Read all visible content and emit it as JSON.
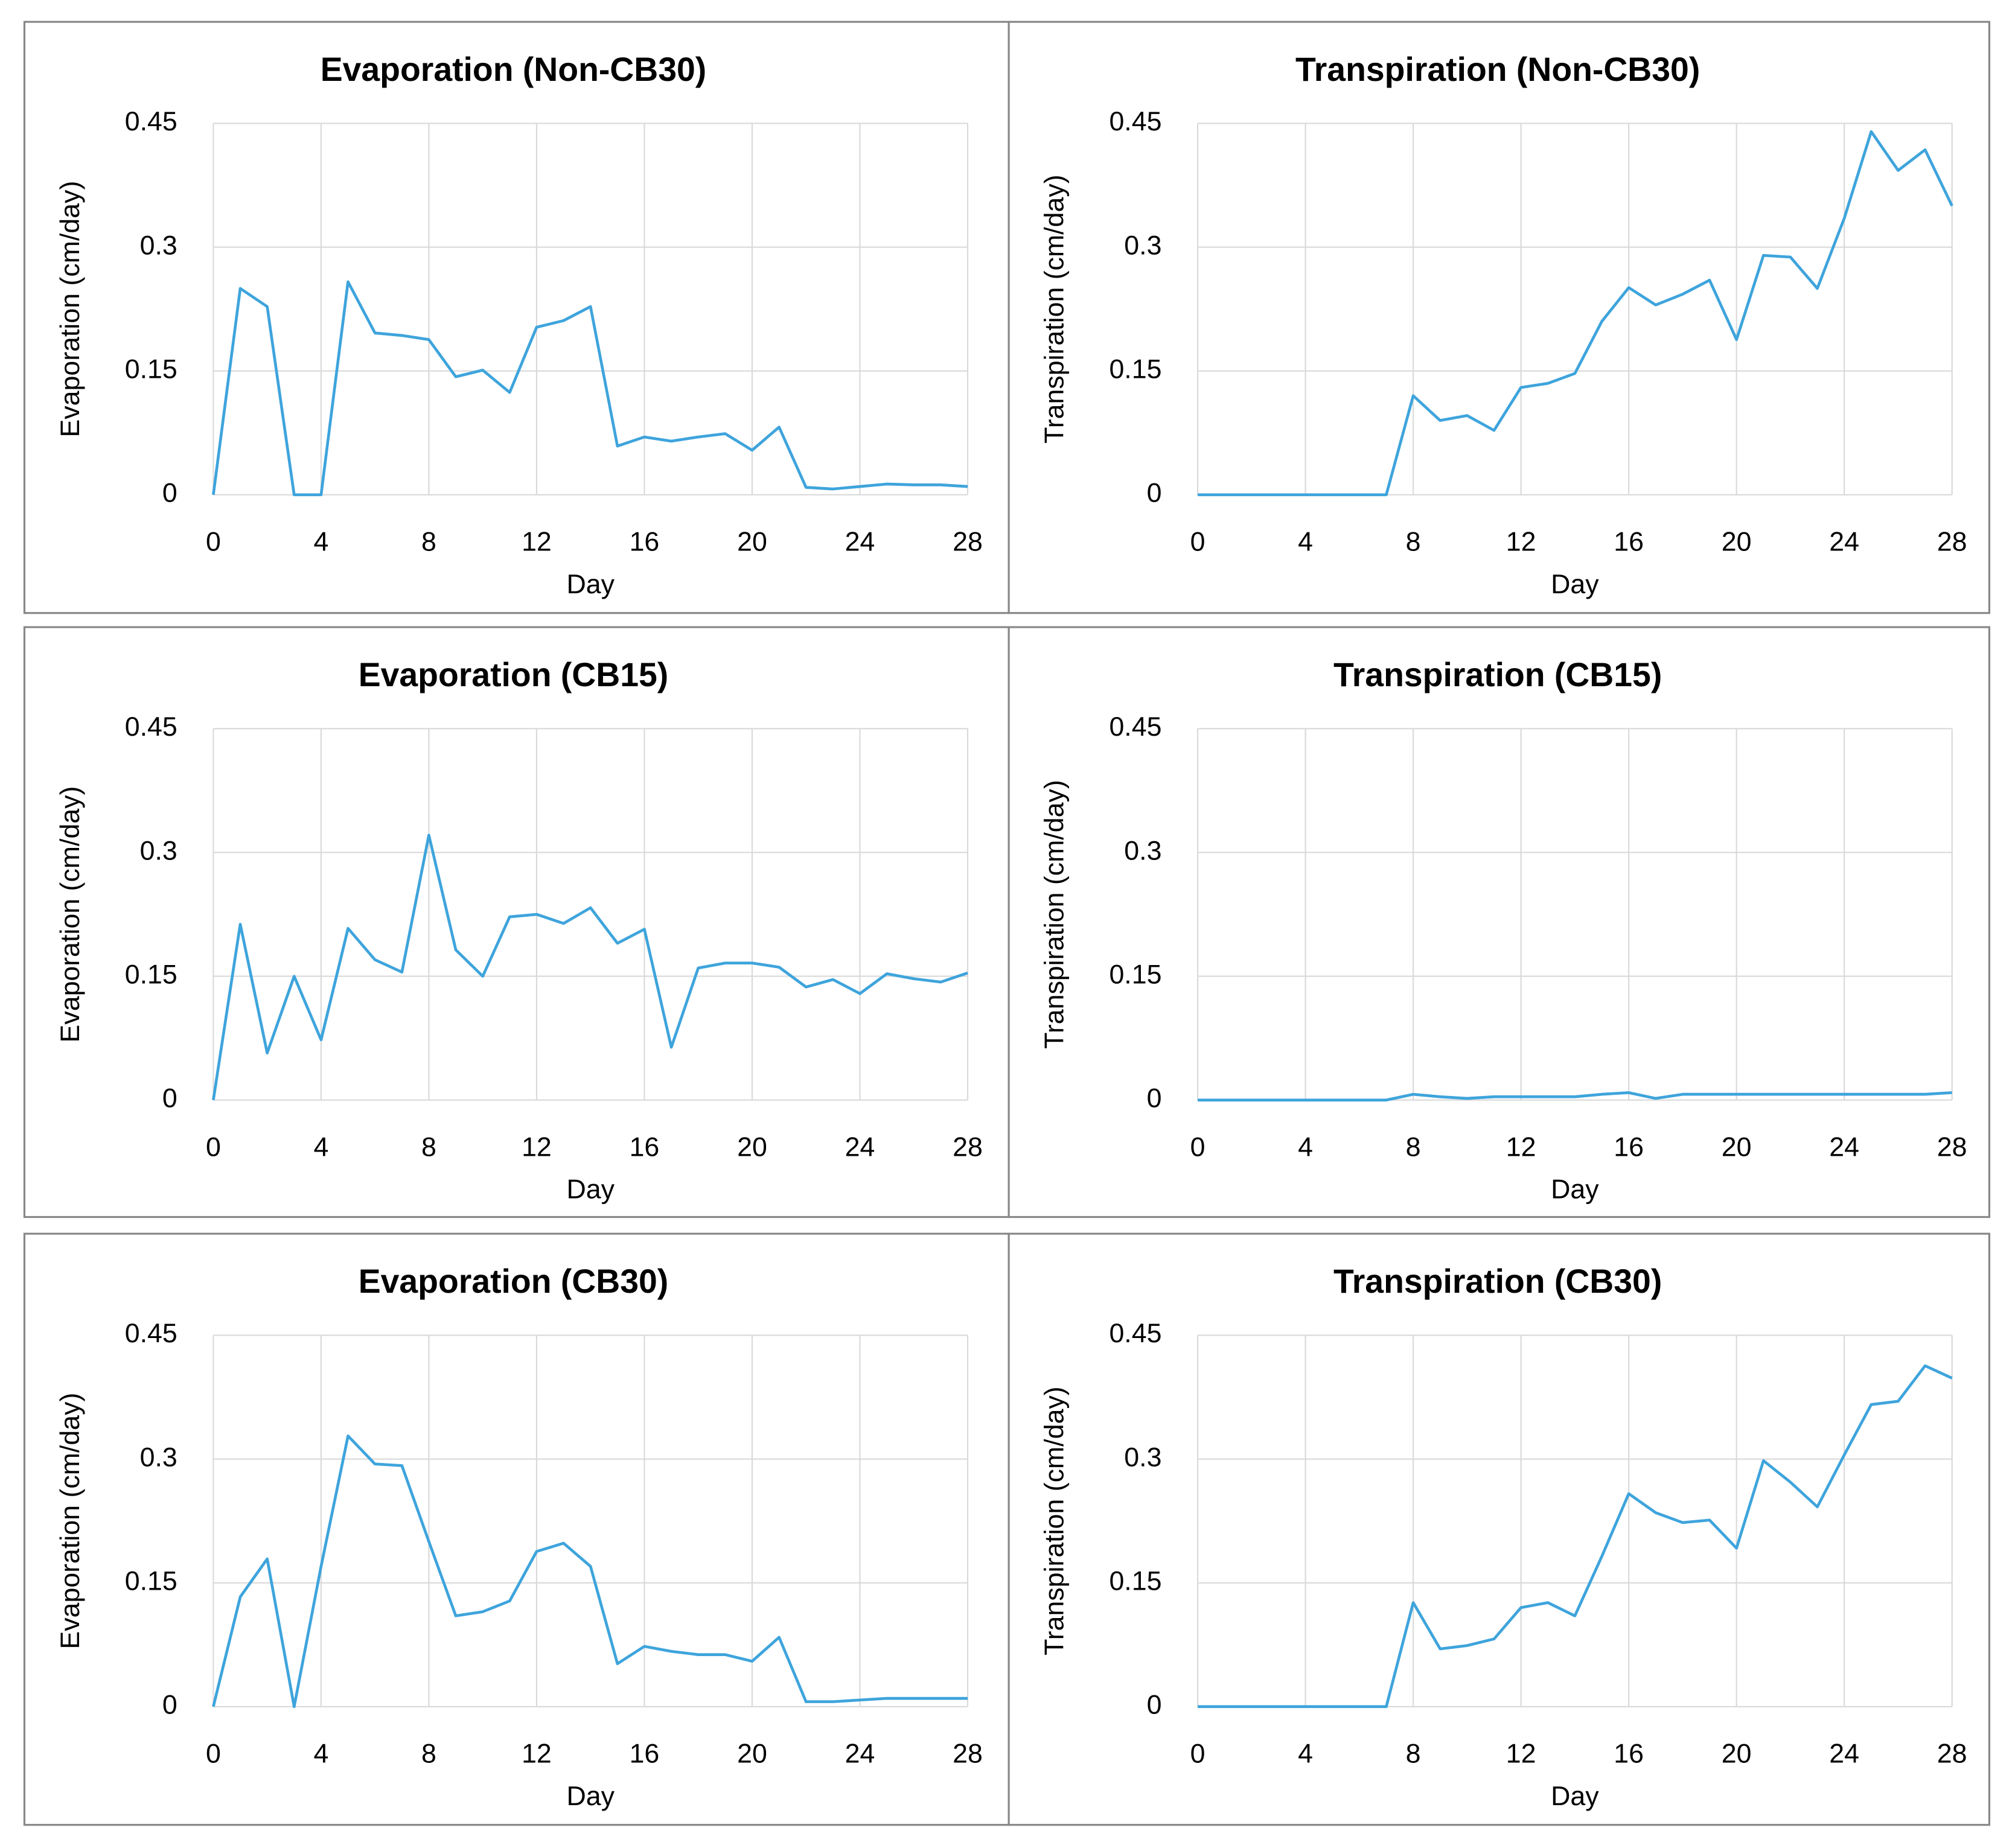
{
  "chart_data": [
    {
      "type": "line",
      "title": "Evaporation (Non-CB30)",
      "xlabel": "Day",
      "ylabel": "Evaporation (cm/day)",
      "x": [
        0,
        1,
        2,
        3,
        4,
        5,
        6,
        7,
        8,
        9,
        10,
        11,
        12,
        13,
        14,
        15,
        16,
        17,
        18,
        19,
        20,
        21,
        22,
        23,
        24,
        25,
        26,
        27,
        28
      ],
      "xlim": [
        0,
        28
      ],
      "xticks": [
        0,
        4,
        8,
        12,
        16,
        20,
        24,
        28
      ],
      "ylim": [
        0,
        0.45
      ],
      "yticks": [
        0,
        0.15,
        0.3,
        0.45
      ],
      "grid": true,
      "series": [
        {
          "color": "#3ea4dc",
          "values": [
            0,
            0.25,
            0.228,
            0,
            0,
            0.258,
            0.196,
            0.193,
            0.188,
            0.143,
            0.151,
            0.124,
            0.203,
            0.211,
            0.228,
            0.059,
            0.07,
            0.065,
            0.07,
            0.074,
            0.054,
            0.082,
            0.009,
            0.007,
            0.01,
            0.013,
            0.012,
            0.012,
            0.01
          ]
        }
      ]
    },
    {
      "type": "line",
      "title": "Transpiration (Non-CB30)",
      "xlabel": "Day",
      "ylabel": "Transpiration (cm/day)",
      "x": [
        0,
        1,
        2,
        3,
        4,
        5,
        6,
        7,
        8,
        9,
        10,
        11,
        12,
        13,
        14,
        15,
        16,
        17,
        18,
        19,
        20,
        21,
        22,
        23,
        24,
        25,
        26,
        27,
        28
      ],
      "xlim": [
        0,
        28
      ],
      "xticks": [
        0,
        4,
        8,
        12,
        16,
        20,
        24,
        28
      ],
      "ylim": [
        0,
        0.45
      ],
      "yticks": [
        0,
        0.15,
        0.3,
        0.45
      ],
      "grid": true,
      "series": [
        {
          "color": "#3ea4dc",
          "values": [
            0,
            0,
            0,
            0,
            0,
            0,
            0,
            0,
            0.12,
            0.09,
            0.096,
            0.078,
            0.13,
            0.135,
            0.147,
            0.21,
            0.251,
            0.23,
            0.243,
            0.26,
            0.188,
            0.29,
            0.288,
            0.25,
            0.335,
            0.44,
            0.393,
            0.418,
            0.35
          ]
        }
      ]
    },
    {
      "type": "line",
      "title": "Evaporation (CB15)",
      "xlabel": "Day",
      "ylabel": "Evaporation (cm/day)",
      "x": [
        0,
        1,
        2,
        3,
        4,
        5,
        6,
        7,
        8,
        9,
        10,
        11,
        12,
        13,
        14,
        15,
        16,
        17,
        18,
        19,
        20,
        21,
        22,
        23,
        24,
        25,
        26,
        27,
        28
      ],
      "xlim": [
        0,
        28
      ],
      "xticks": [
        0,
        4,
        8,
        12,
        16,
        20,
        24,
        28
      ],
      "ylim": [
        0,
        0.45
      ],
      "yticks": [
        0,
        0.15,
        0.3,
        0.45
      ],
      "grid": true,
      "series": [
        {
          "color": "#3ea4dc",
          "values": [
            0,
            0.213,
            0.057,
            0.15,
            0.073,
            0.208,
            0.17,
            0.155,
            0.321,
            0.182,
            0.15,
            0.222,
            0.225,
            0.214,
            0.233,
            0.19,
            0.207,
            0.064,
            0.16,
            0.166,
            0.166,
            0.161,
            0.137,
            0.146,
            0.129,
            0.153,
            0.147,
            0.143,
            0.154
          ]
        }
      ]
    },
    {
      "type": "line",
      "title": "Transpiration (CB15)",
      "xlabel": "Day",
      "ylabel": "Transpiration (cm/day)",
      "x": [
        0,
        1,
        2,
        3,
        4,
        5,
        6,
        7,
        8,
        9,
        10,
        11,
        12,
        13,
        14,
        15,
        16,
        17,
        18,
        19,
        20,
        21,
        22,
        23,
        24,
        25,
        26,
        27,
        28
      ],
      "xlim": [
        0,
        28
      ],
      "xticks": [
        0,
        4,
        8,
        12,
        16,
        20,
        24,
        28
      ],
      "ylim": [
        0,
        0.45
      ],
      "yticks": [
        0,
        0.15,
        0.3,
        0.45
      ],
      "grid": true,
      "series": [
        {
          "color": "#3ea4dc",
          "values": [
            0,
            0,
            0,
            0,
            0,
            0,
            0,
            0,
            0.007,
            0.004,
            0.002,
            0.004,
            0.004,
            0.004,
            0.004,
            0.007,
            0.009,
            0.002,
            0.007,
            0.007,
            0.007,
            0.007,
            0.007,
            0.007,
            0.007,
            0.007,
            0.007,
            0.007,
            0.009
          ]
        }
      ]
    },
    {
      "type": "line",
      "title": "Evaporation (CB30)",
      "xlabel": "Day",
      "ylabel": "Evaporation (cm/day)",
      "x": [
        0,
        1,
        2,
        3,
        4,
        5,
        6,
        7,
        8,
        9,
        10,
        11,
        12,
        13,
        14,
        15,
        16,
        17,
        18,
        19,
        20,
        21,
        22,
        23,
        24,
        25,
        26,
        27,
        28
      ],
      "xlim": [
        0,
        28
      ],
      "xticks": [
        0,
        4,
        8,
        12,
        16,
        20,
        24,
        28
      ],
      "ylim": [
        0,
        0.45
      ],
      "yticks": [
        0,
        0.15,
        0.3,
        0.45
      ],
      "grid": true,
      "series": [
        {
          "color": "#3ea4dc",
          "values": [
            0,
            0.133,
            0.179,
            0,
            0.17,
            0.328,
            0.294,
            0.292,
            0.2,
            0.11,
            0.115,
            0.128,
            0.188,
            0.198,
            0.17,
            0.052,
            0.073,
            0.067,
            0.063,
            0.063,
            0.055,
            0.084,
            0.006,
            0.006,
            0.008,
            0.01,
            0.01,
            0.01,
            0.01
          ]
        }
      ]
    },
    {
      "type": "line",
      "title": "Transpiration (CB30)",
      "xlabel": "Day",
      "ylabel": "Transpiration (cm/day)",
      "x": [
        0,
        1,
        2,
        3,
        4,
        5,
        6,
        7,
        8,
        9,
        10,
        11,
        12,
        13,
        14,
        15,
        16,
        17,
        18,
        19,
        20,
        21,
        22,
        23,
        24,
        25,
        26,
        27,
        28
      ],
      "xlim": [
        0,
        28
      ],
      "xticks": [
        0,
        4,
        8,
        12,
        16,
        20,
        24,
        28
      ],
      "ylim": [
        0,
        0.45
      ],
      "yticks": [
        0,
        0.15,
        0.3,
        0.45
      ],
      "grid": true,
      "series": [
        {
          "color": "#3ea4dc",
          "values": [
            0,
            0,
            0,
            0,
            0,
            0,
            0,
            0,
            0.126,
            0.07,
            0.074,
            0.082,
            0.12,
            0.126,
            0.11,
            0.182,
            0.258,
            0.235,
            0.223,
            0.226,
            0.192,
            0.298,
            0.272,
            0.242,
            0.305,
            0.366,
            0.37,
            0.413,
            0.398
          ]
        }
      ]
    }
  ]
}
